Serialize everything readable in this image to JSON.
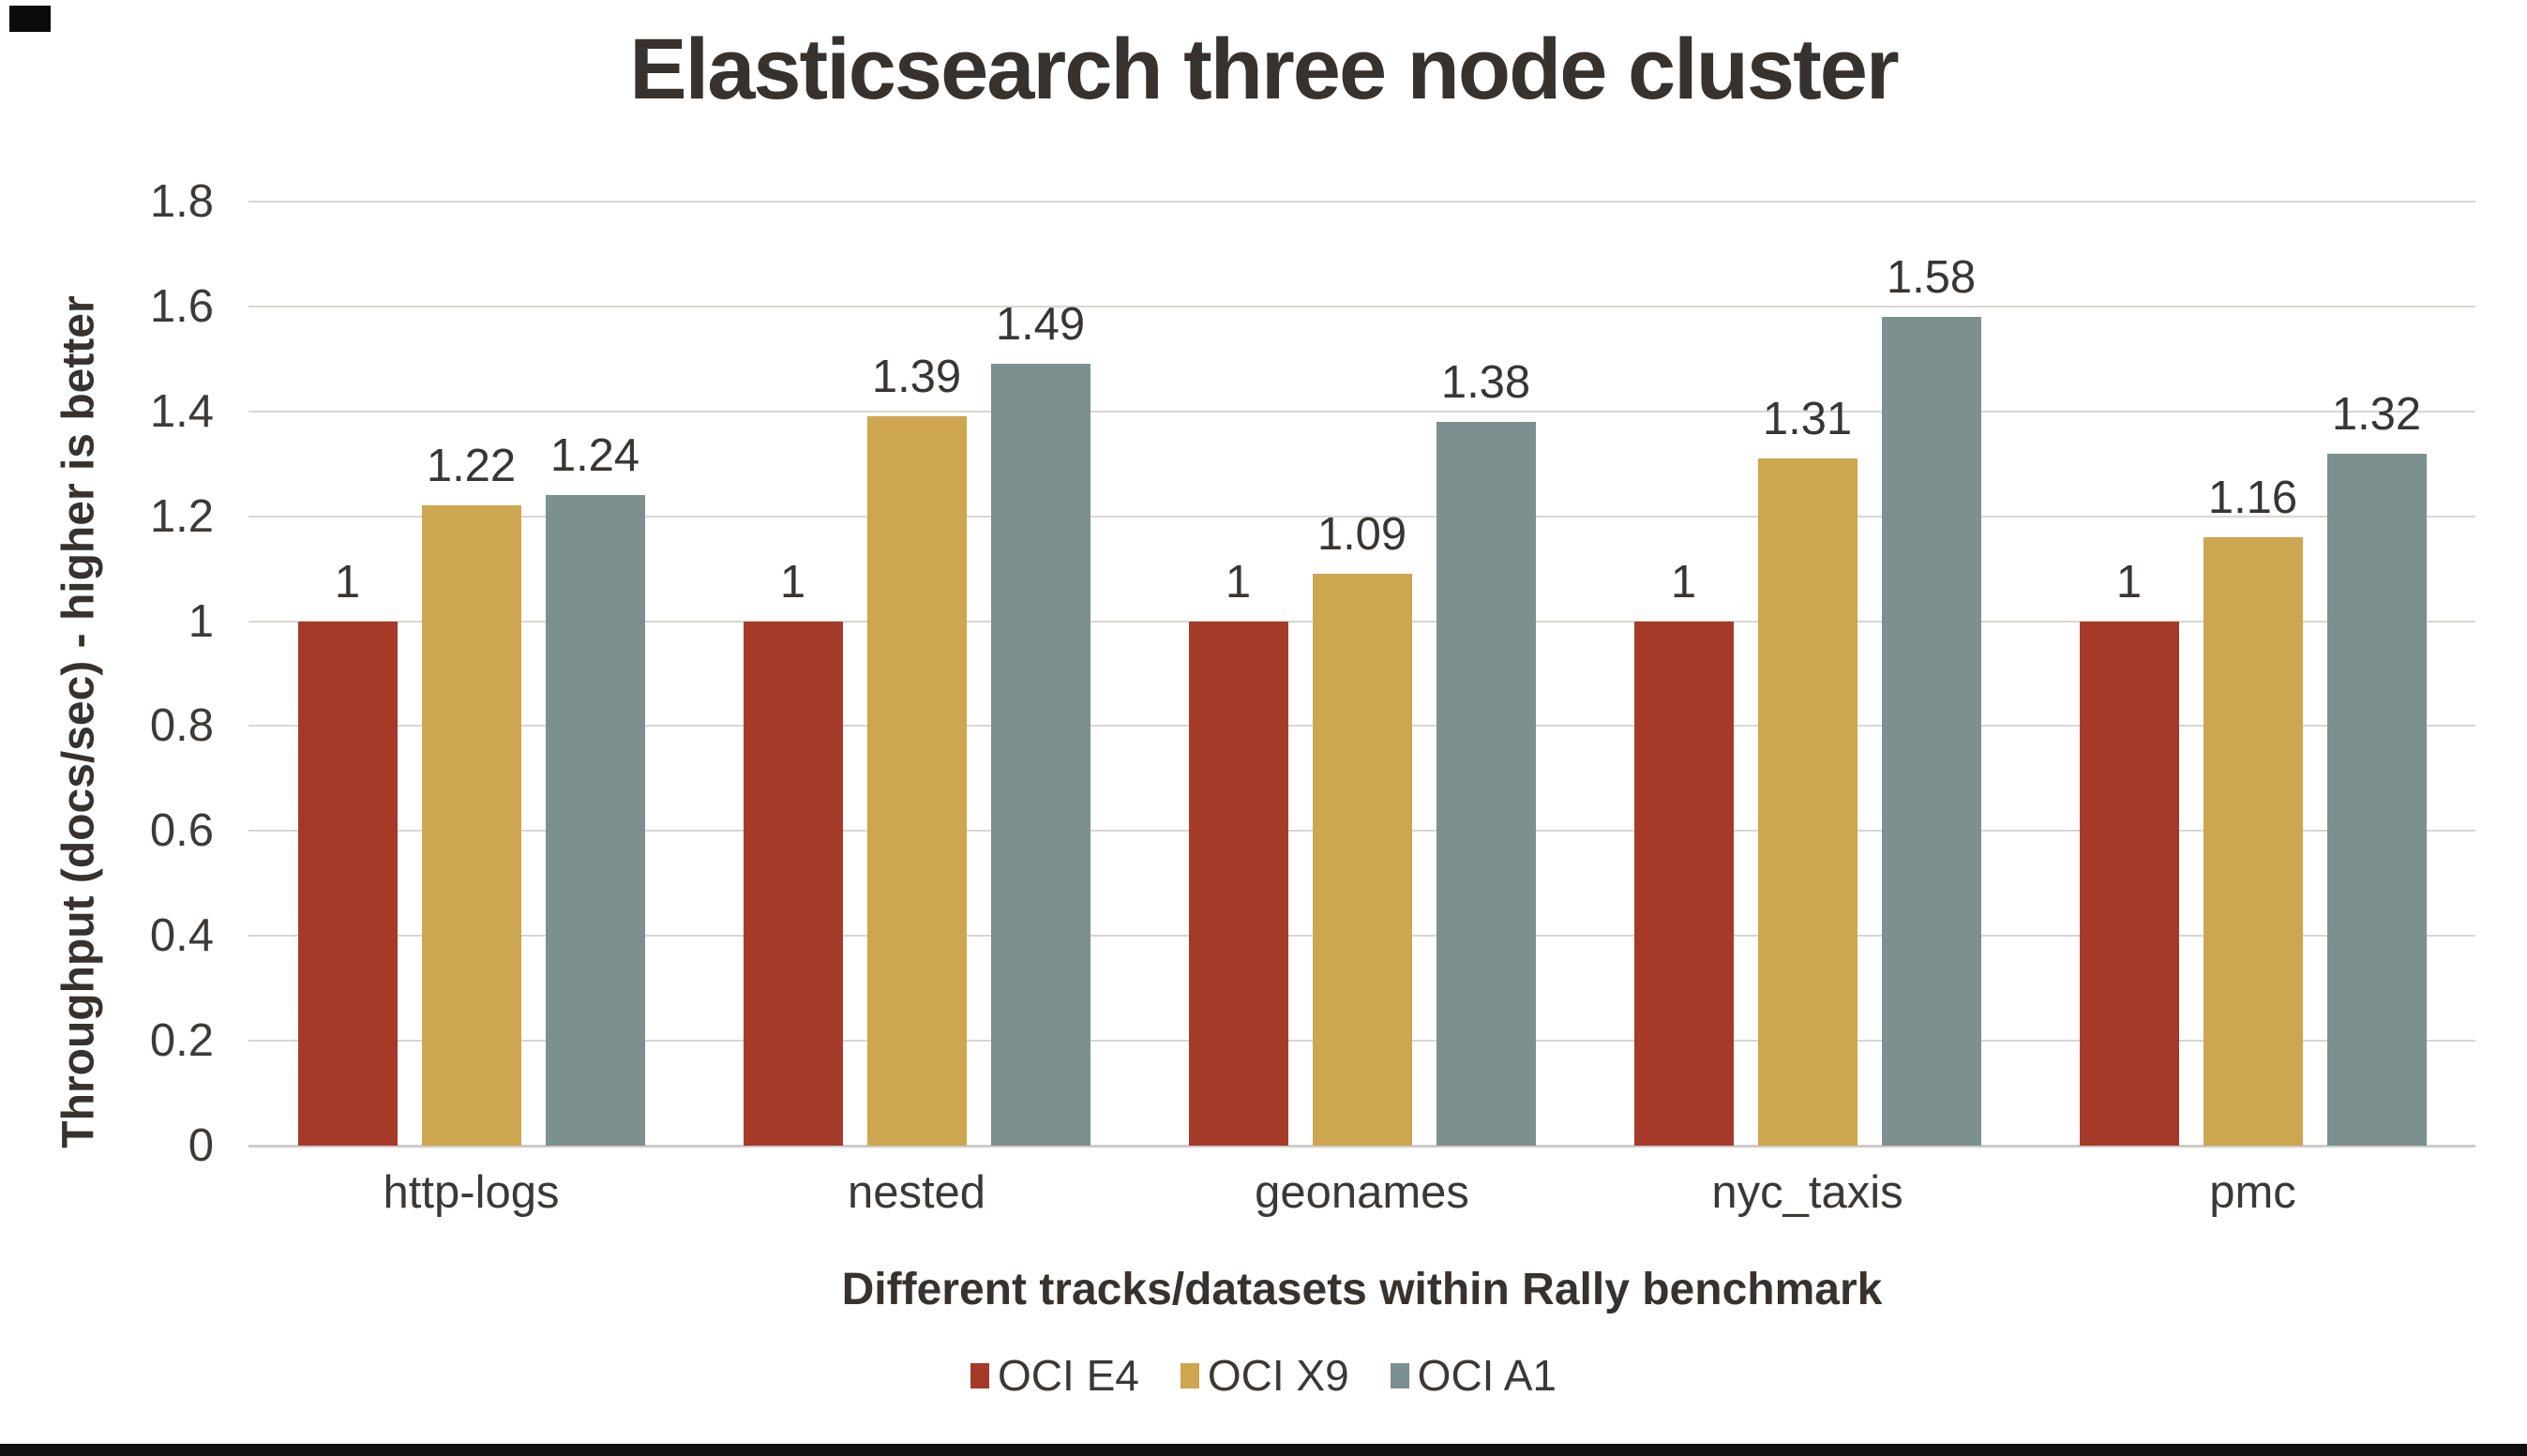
{
  "chart_data": {
    "type": "bar",
    "title": "Elasticsearch three node cluster",
    "xlabel": "Different tracks/datasets within Rally benchmark",
    "ylabel": "Throughput (docs/sec) - higher is better",
    "categories": [
      "http-logs",
      "nested",
      "geonames",
      "nyc_taxis",
      "pmc"
    ],
    "series": [
      {
        "name": "OCI E4",
        "color": "#a63a29",
        "values": [
          1,
          1,
          1,
          1,
          1
        ],
        "labels": [
          "1",
          "1",
          "1",
          "1",
          "1"
        ]
      },
      {
        "name": "OCI X9",
        "color": "#cda64f",
        "values": [
          1.22,
          1.39,
          1.09,
          1.31,
          1.16
        ],
        "labels": [
          "1.22",
          "1.39",
          "1.09",
          "1.31",
          "1.16"
        ]
      },
      {
        "name": "OCI A1",
        "color": "#7b908f",
        "values": [
          1.24,
          1.49,
          1.38,
          1.58,
          1.32
        ],
        "labels": [
          "1.24",
          "1.49",
          "1.38",
          "1.58",
          "1.32"
        ]
      }
    ],
    "ylim": [
      0,
      1.8
    ],
    "yticks": [
      0,
      0.2,
      0.4,
      0.6,
      0.8,
      1,
      1.2,
      1.4,
      1.6,
      1.8
    ],
    "ytick_labels": [
      "0",
      "0.2",
      "0.4",
      "0.6",
      "0.8",
      "1",
      "1.2",
      "1.4",
      "1.6",
      "1.8"
    ],
    "grid": true,
    "legend_position": "bottom"
  }
}
